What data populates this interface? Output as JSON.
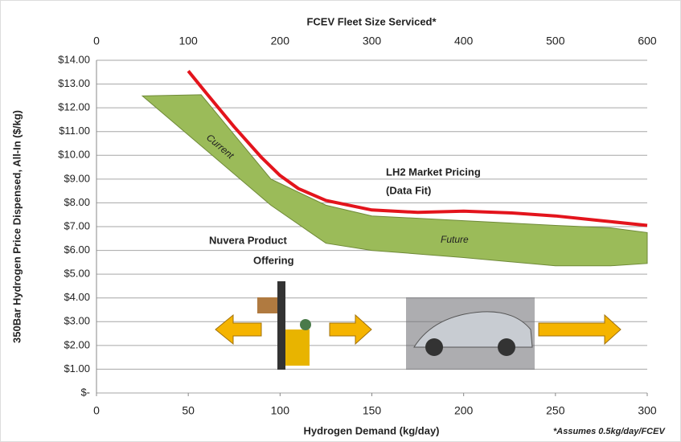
{
  "chart_data": {
    "type": "band-line",
    "title": "FCEV Fleet Size Serviced*",
    "x_label": "Hydrogen Demand (kg/day)",
    "y_label": "350Bar Hydrogen Price Dispensed, All-In ($/kg)",
    "footnote": "*Assumes 0.5kg/day/FCEV",
    "xlim": [
      0,
      300
    ],
    "xticks": [
      0,
      50,
      100,
      150,
      200,
      250,
      300
    ],
    "x2lim": [
      0,
      600
    ],
    "x2ticks": [
      0,
      100,
      200,
      300,
      400,
      500,
      600
    ],
    "ylim": [
      0,
      14
    ],
    "yticks": [
      {
        "value": 0,
        "label": "$-"
      },
      {
        "value": 1,
        "label": "$1.00"
      },
      {
        "value": 2,
        "label": "$2.00"
      },
      {
        "value": 3,
        "label": "$3.00"
      },
      {
        "value": 4,
        "label": "$4.00"
      },
      {
        "value": 5,
        "label": "$5.00"
      },
      {
        "value": 6,
        "label": "$6.00"
      },
      {
        "value": 7,
        "label": "$7.00"
      },
      {
        "value": 8,
        "label": "$8.00"
      },
      {
        "value": 9,
        "label": "$9.00"
      },
      {
        "value": 10,
        "label": "$10.00"
      },
      {
        "value": 11,
        "label": "$11.00"
      },
      {
        "value": 12,
        "label": "$12.00"
      },
      {
        "value": 13,
        "label": "$13.00"
      },
      {
        "value": 14,
        "label": "$14.00"
      }
    ],
    "grid": true,
    "band": {
      "color": "#9bbb59",
      "x": [
        25,
        57,
        95,
        125,
        150,
        200,
        250,
        280,
        300
      ],
      "upper": [
        12.5,
        12.55,
        9.0,
        7.9,
        7.45,
        7.25,
        7.05,
        6.95,
        6.75
      ],
      "lower": [
        12.5,
        10.4,
        7.9,
        6.3,
        6.0,
        5.7,
        5.35,
        5.35,
        5.45
      ]
    },
    "line": {
      "color": "#e3141c",
      "x": [
        50,
        60,
        75,
        90,
        100,
        110,
        125,
        150,
        175,
        200,
        225,
        250,
        275,
        300
      ],
      "values": [
        13.55,
        12.6,
        11.2,
        9.9,
        9.15,
        8.6,
        8.1,
        7.7,
        7.6,
        7.65,
        7.58,
        7.45,
        7.25,
        7.05
      ]
    },
    "annotations": [
      {
        "text": "LH2 Market Pricing",
        "color": "#e3141c"
      },
      {
        "text": "(Data Fit)",
        "color": "#e3141c"
      },
      {
        "text": "Nuvera Product",
        "color": "#4f6228"
      },
      {
        "text": "Offering",
        "color": "#4f6228"
      },
      {
        "text": "Current",
        "color": "#ffffff"
      },
      {
        "text": "Future",
        "color": "#ffffff"
      }
    ]
  }
}
